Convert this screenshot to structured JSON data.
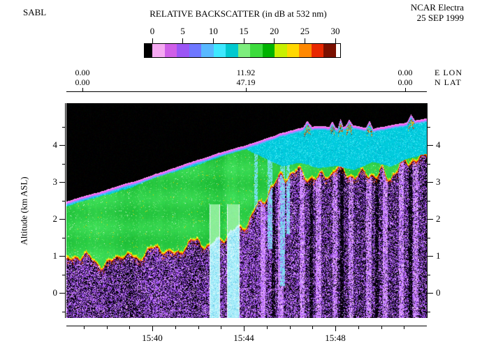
{
  "header": {
    "instrument": "SABL",
    "title": "RELATIVE BACKSCATTER (in dB at 532 nm)",
    "platform": "NCAR Electra",
    "date": "25 SEP 1999"
  },
  "colorbar": {
    "tick_labels": [
      "0",
      "5",
      "10",
      "15",
      "20",
      "25",
      "30"
    ],
    "lead_color": "#000000",
    "tail_color": "#ffffff",
    "colors": [
      "#f5a9f2",
      "#cf5fe8",
      "#9b55f5",
      "#6e77ff",
      "#58b8ff",
      "#3ee8ff",
      "#00c9cf",
      "#7ded7d",
      "#3ddc3d",
      "#00b300",
      "#c8f000",
      "#ffd800",
      "#ff8800",
      "#e82800",
      "#7a1000"
    ]
  },
  "position_labels": {
    "lon_values": [
      "0.00",
      "11.92",
      "0.00"
    ],
    "lat_values": [
      "0.00",
      "47.19",
      "0.00"
    ],
    "lon_axis_label": "E LON",
    "lat_axis_label": "N LAT"
  },
  "axes": {
    "y_title": "Altitude (km ASL)",
    "y_tick_labels": [
      "0",
      "1",
      "2",
      "3",
      "4"
    ],
    "x_tick_labels": [
      "15:40",
      "15:44",
      "15:48"
    ]
  },
  "chart_data": {
    "type": "heatmap",
    "title": "RELATIVE BACKSCATTER (in dB at 532 nm)",
    "units": "dB at 532 nm",
    "colorbar_ticks_db": [
      0,
      5,
      10,
      15,
      20,
      25,
      30
    ],
    "x_axis": {
      "ticks": [
        "15:40",
        "15:44",
        "15:48"
      ],
      "approx_range": [
        "15:36",
        "15:52"
      ]
    },
    "y_axis": {
      "label": "Altitude (km ASL)",
      "ticks_km": [
        0,
        1,
        2,
        3,
        4
      ],
      "approx_range_km": [
        -0.68,
        5.13
      ]
    },
    "position_markers": [
      {
        "e_lon": "0.00",
        "n_lat": "0.00"
      },
      {
        "e_lon": "11.92",
        "n_lat": "47.19"
      },
      {
        "e_lon": "0.00",
        "n_lat": "0.00"
      }
    ],
    "profiles": {
      "x_frac": [
        0,
        0.05,
        0.1,
        0.15,
        0.2,
        0.25,
        0.3,
        0.35,
        0.4,
        0.45,
        0.5,
        0.55,
        0.6,
        0.65,
        0.7,
        0.75,
        0.8,
        0.85,
        0.9,
        0.95,
        1
      ],
      "signal_top_km": [
        2.48,
        2.62,
        2.76,
        2.92,
        3.08,
        3.24,
        3.4,
        3.56,
        3.72,
        3.88,
        4.02,
        4.18,
        4.34,
        4.46,
        4.52,
        4.46,
        4.54,
        4.44,
        4.54,
        4.62,
        4.72
      ],
      "cyan_layer_bottom_km": [
        2.34,
        2.48,
        2.62,
        2.78,
        2.94,
        3.1,
        3.26,
        3.42,
        3.58,
        3.74,
        3.86,
        3.62,
        3.42,
        3.52,
        3.38,
        3.46,
        3.34,
        3.56,
        3.42,
        3.64,
        3.78
      ],
      "aerosol_layer_bottom_km": [
        0.78,
        0.95,
        0.72,
        1.05,
        0.86,
        1.22,
        1.02,
        1.42,
        1.15,
        1.55,
        1.88,
        2.55,
        3.05,
        3.28,
        3.12,
        3.26,
        3.1,
        3.36,
        3.2,
        3.44,
        3.58
      ]
    },
    "features": {
      "clear_gap_columns_frac": [
        [
          0.398,
          0.425
        ],
        [
          0.447,
          0.48
        ]
      ],
      "gap_top_km": 2.4,
      "bright_streaks_frac": [
        0.545,
        0.595,
        0.655,
        0.7,
        0.745,
        0.79,
        0.84,
        0.885,
        0.93,
        0.97
      ],
      "dark_streaks_frac": [
        0.575,
        0.68,
        0.765,
        0.862,
        0.955
      ],
      "cyan_streaks": [
        {
          "frac": 0.527,
          "width": 0.004,
          "bottom_km": 2.3
        },
        {
          "frac": 0.565,
          "width": 0.005,
          "bottom_km": 1.2
        },
        {
          "frac": 0.6,
          "width": 0.006,
          "bottom_km": 0.2
        },
        {
          "frac": 0.615,
          "width": 0.004,
          "bottom_km": 1.6
        }
      ],
      "cloud_top_warm_band_frac": [
        0.54,
        0.72
      ]
    },
    "palette": {
      "above_signal": "#000000",
      "boundary_line": "#ff78ff",
      "boundary_under": "#6ea5ff",
      "cyan_layer": "#00cbdd",
      "cyan_light": "#46e8f6",
      "green_layer": "#2dcd46",
      "green_light": "#6ee878",
      "warm_fringe": [
        "#d8ff00",
        "#ffd400",
        "#ff7b00",
        "#d21e00",
        "#7a0e00"
      ],
      "speckle": [
        "#9646eb",
        "#b66cfa",
        "#d696ff",
        "#762ab4",
        "#eea8ff"
      ],
      "speckle_bg": "#080010",
      "white": "#ffffff"
    }
  }
}
